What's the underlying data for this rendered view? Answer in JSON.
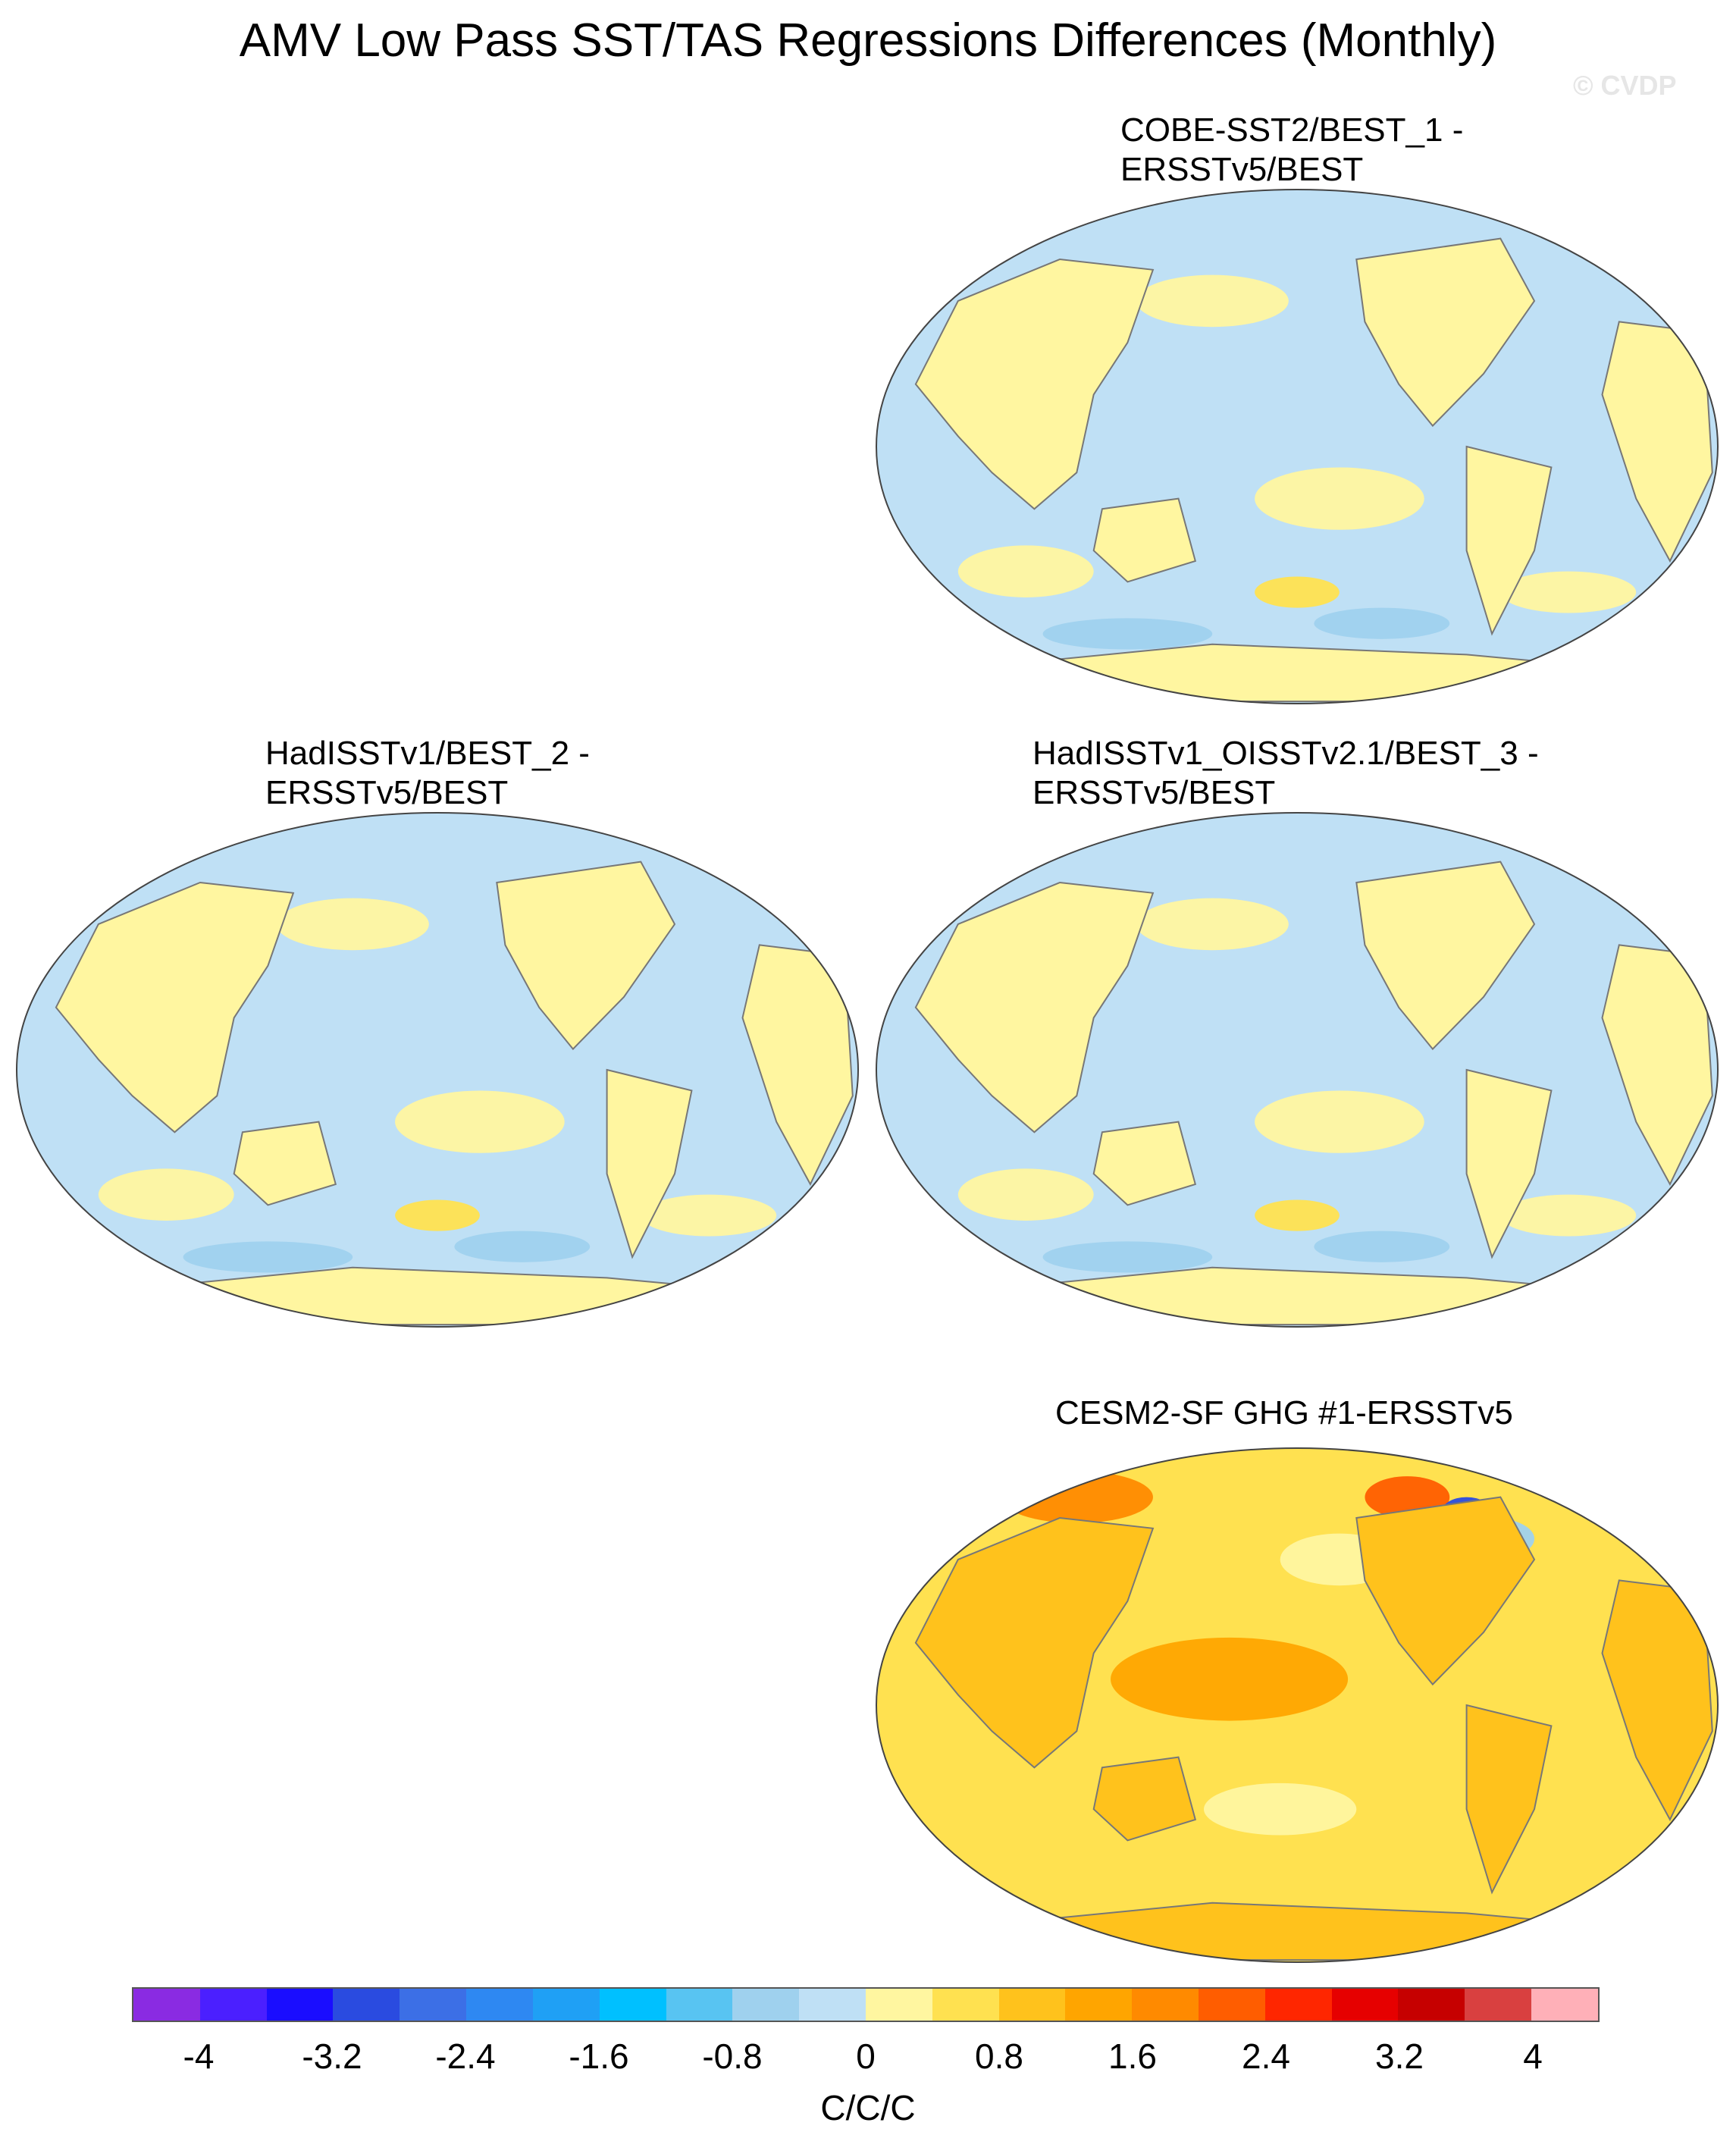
{
  "title": "AMV Low Pass SST/TAS Regressions Differences (Monthly)",
  "watermark": "© CVDP",
  "panels": [
    {
      "line1": "COBE-SST2/BEST_1 -",
      "line2": "ERSSTv5/BEST",
      "scheme": "mixed-light"
    },
    {
      "line1": "HadISSTv1/BEST_2 -",
      "line2": "ERSSTv5/BEST",
      "scheme": "mixed-light"
    },
    {
      "line1": "HadISSTv1_OISSTv2.1/BEST_3 -",
      "line2": "ERSSTv5/BEST",
      "scheme": "mixed-light"
    },
    {
      "line1": "CESM2-SF GHG #1-ERSSTv5",
      "line2": "",
      "scheme": "warm"
    }
  ],
  "colorbar": {
    "colors": [
      "#8a2be2",
      "#4b1fff",
      "#1a0dff",
      "#2a4be0",
      "#3c6fe6",
      "#2e88f2",
      "#1fa0f5",
      "#00c0ff",
      "#58c4f2",
      "#9fd1ee",
      "#bfe0f5",
      "#fff6a0",
      "#ffe150",
      "#ffc21c",
      "#ffa500",
      "#ff8a00",
      "#ff5d00",
      "#ff2600",
      "#e60000",
      "#c60000",
      "#d94040",
      "#ffb0b8"
    ],
    "tick_labels": [
      "-4",
      "-3.2",
      "-2.4",
      "-1.6",
      "-0.8",
      "0",
      "0.8",
      "1.6",
      "2.4",
      "3.2",
      "4"
    ],
    "units": "C/C/C"
  }
}
